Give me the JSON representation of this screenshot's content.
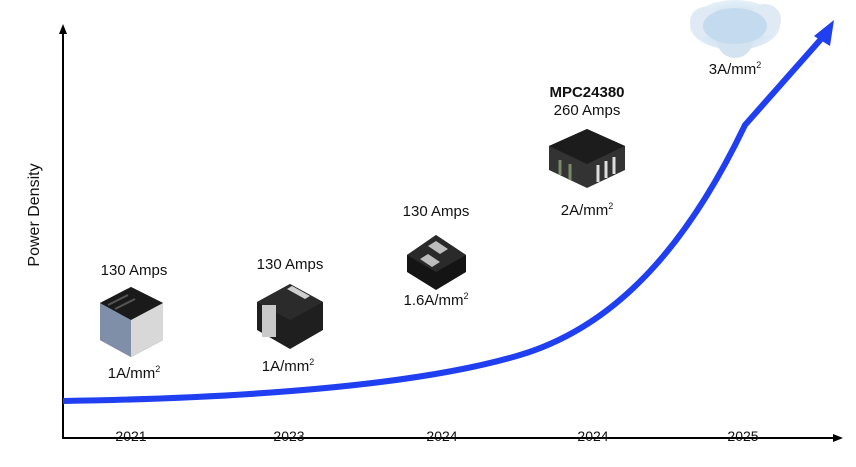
{
  "y_axis_label": "Power Density",
  "curve_color": "#1f3ff0",
  "milestones": [
    {
      "year": "2021",
      "current": "130 Amps",
      "density": "1A/mm",
      "density_sup": "2"
    },
    {
      "year": "2023",
      "current": "130 Amps",
      "density": "1A/mm",
      "density_sup": "2"
    },
    {
      "year": "2024",
      "current": "130 Amps",
      "density": "1.6A/mm",
      "density_sup": "2"
    },
    {
      "year": "2024",
      "name": "MPC24380",
      "current": "260 Amps",
      "density": "2A/mm",
      "density_sup": "2"
    },
    {
      "year": "2025",
      "density": "3A/mm",
      "density_sup": "2"
    }
  ]
}
